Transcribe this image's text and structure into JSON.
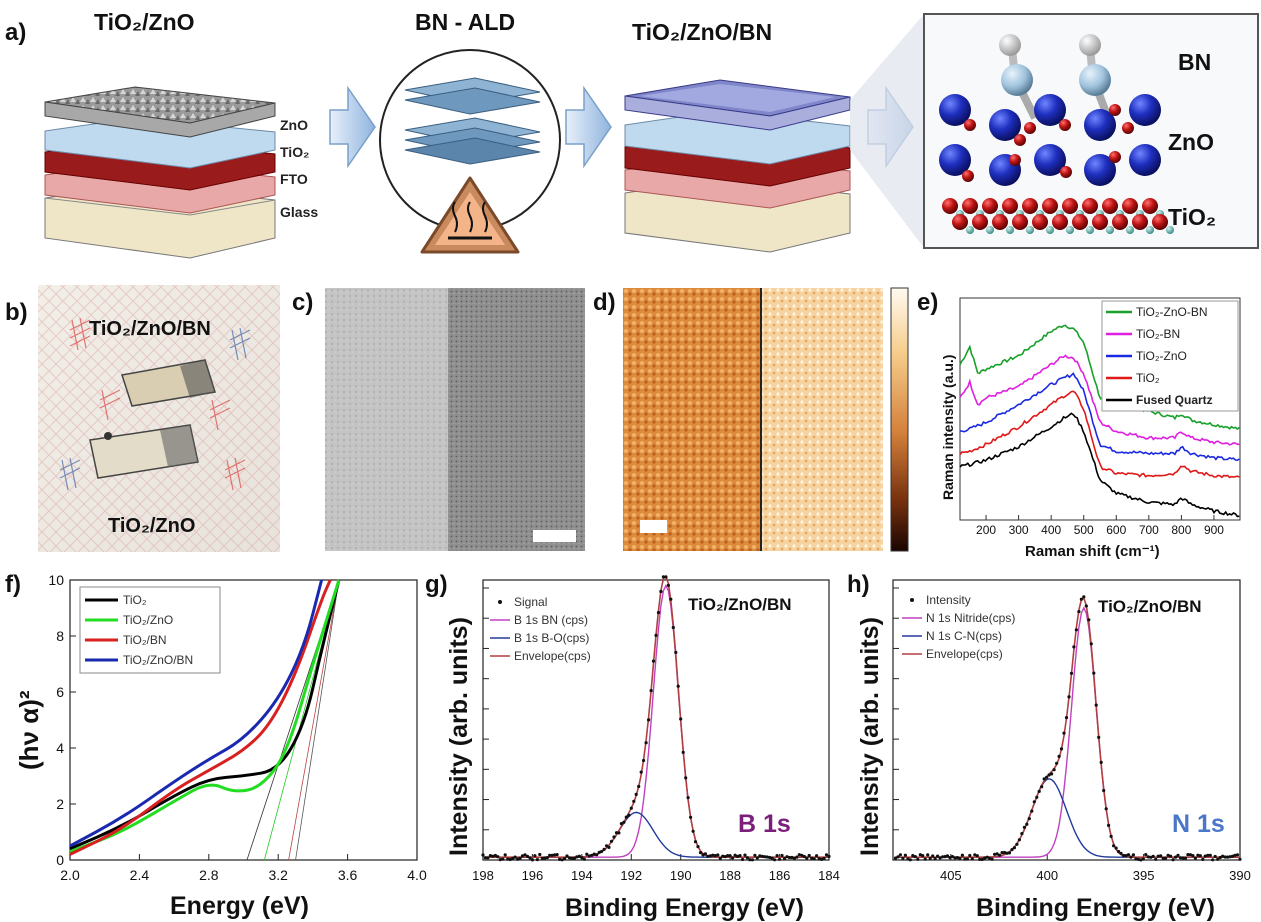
{
  "panel_a": {
    "label": "a)",
    "title_1": "TiO₂/ZnO",
    "title_2": "BN - ALD",
    "title_3": "TiO₂/ZnO/BN",
    "layers": [
      "ZnO",
      "TiO₂",
      "FTO",
      "Glass"
    ],
    "inset_labels": [
      "BN",
      "ZnO",
      "TiO₂"
    ],
    "icon": "hot-surface-warning-icon",
    "colors": {
      "zno": "#bfd9ee",
      "tio2": "#9a1b1b",
      "fto": "#e9a8a8",
      "glass": "#efe6c8",
      "atom_zn": "#1f2fbf",
      "atom_o": "#c01414",
      "atom_b": "#9ec2dc",
      "atom_h": "#f2f2f2"
    }
  },
  "panel_b": {
    "label": "b)",
    "top_text": "TiO₂/ZnO/BN",
    "bottom_text": "TiO₂/ZnO"
  },
  "panel_c": {
    "label": "c)"
  },
  "panel_d": {
    "label": "d)"
  },
  "panel_e": {
    "label": "e)",
    "legend": [
      "TiO₂-ZnO-BN",
      "TiO₂-BN",
      "TiO₂-ZnO",
      "TiO₂",
      "Fused Quartz"
    ],
    "colors": [
      "#18a02a",
      "#e020e0",
      "#1a2ae0",
      "#e01818",
      "#000000"
    ]
  },
  "panel_f": {
    "label": "f)",
    "ylabel": "(hν α)²",
    "xlabel": "Energy (eV)"
  },
  "panel_g": {
    "label": "g)",
    "sample": "TiO₂/ZnO/BN",
    "peak": "B 1s",
    "ylabel": "Intensity (arb. units)",
    "xlabel": "Binding Energy (eV)"
  },
  "panel_h": {
    "label": "h)",
    "sample": "TiO₂/ZnO/BN",
    "peak": "N 1s",
    "ylabel": "Intensity (arb. units)",
    "xlabel": "Binding Energy (eV)"
  },
  "chart_data": [
    {
      "type": "line",
      "panel": "e",
      "xlabel": "Raman shift (cm⁻¹)",
      "ylabel": "Raman intensity (a.u.)",
      "xticks": [
        200,
        300,
        400,
        500,
        600,
        700,
        800,
        900
      ],
      "xlim": [
        120,
        980
      ],
      "series": [
        {
          "name": "TiO₂-ZnO-BN",
          "x": [
            120,
            150,
            175,
            200,
            300,
            400,
            440,
            470,
            500,
            550,
            600,
            700,
            780,
            800,
            830,
            900,
            980
          ],
          "y": [
            0.7,
            0.78,
            0.66,
            0.68,
            0.74,
            0.85,
            0.88,
            0.86,
            0.8,
            0.55,
            0.53,
            0.49,
            0.46,
            0.48,
            0.45,
            0.43,
            0.41
          ]
        },
        {
          "name": "TiO₂-BN",
          "x": [
            120,
            150,
            175,
            200,
            300,
            400,
            440,
            470,
            500,
            550,
            600,
            700,
            780,
            800,
            830,
            900,
            980
          ],
          "y": [
            0.55,
            0.62,
            0.52,
            0.55,
            0.6,
            0.7,
            0.74,
            0.73,
            0.66,
            0.44,
            0.4,
            0.37,
            0.37,
            0.4,
            0.37,
            0.35,
            0.34
          ]
        },
        {
          "name": "TiO₂-ZnO",
          "x": [
            120,
            150,
            200,
            300,
            400,
            440,
            470,
            500,
            550,
            600,
            700,
            780,
            800,
            830,
            900,
            980
          ],
          "y": [
            0.4,
            0.41,
            0.44,
            0.52,
            0.61,
            0.64,
            0.66,
            0.58,
            0.34,
            0.31,
            0.3,
            0.3,
            0.33,
            0.3,
            0.28,
            0.27
          ]
        },
        {
          "name": "TiO₂",
          "x": [
            120,
            150,
            200,
            300,
            400,
            440,
            470,
            500,
            550,
            600,
            700,
            780,
            800,
            830,
            900,
            980
          ],
          "y": [
            0.3,
            0.31,
            0.34,
            0.42,
            0.52,
            0.56,
            0.58,
            0.5,
            0.24,
            0.21,
            0.2,
            0.21,
            0.25,
            0.22,
            0.2,
            0.19
          ]
        },
        {
          "name": "Fused Quartz",
          "x": [
            120,
            150,
            200,
            300,
            400,
            440,
            470,
            500,
            550,
            600,
            700,
            780,
            800,
            830,
            900,
            980
          ],
          "y": [
            0.24,
            0.25,
            0.27,
            0.33,
            0.42,
            0.46,
            0.48,
            0.4,
            0.18,
            0.12,
            0.08,
            0.07,
            0.1,
            0.07,
            0.04,
            0.02
          ]
        }
      ]
    },
    {
      "type": "line",
      "panel": "f",
      "xlabel": "Energy (eV)",
      "ylabel": "(hν α)²",
      "xlim": [
        2.0,
        4.0
      ],
      "ylim": [
        0,
        10
      ],
      "xticks": [
        2.0,
        2.4,
        2.8,
        3.2,
        3.6,
        4.0
      ],
      "yticks": [
        0,
        2,
        4,
        6,
        8,
        10
      ],
      "series": [
        {
          "name": "TiO₂",
          "color": "#000000",
          "x": [
            2.0,
            2.3,
            2.6,
            2.8,
            3.0,
            3.2,
            3.35,
            3.45,
            3.55
          ],
          "y": [
            0.4,
            1.2,
            2.3,
            2.9,
            3.0,
            3.2,
            4.8,
            7.5,
            10
          ]
        },
        {
          "name": "TiO₂/ZnO",
          "color": "#22dd22",
          "x": [
            2.0,
            2.3,
            2.6,
            2.8,
            2.95,
            3.1,
            3.25,
            3.4,
            3.5,
            3.55
          ],
          "y": [
            0.3,
            1.0,
            2.1,
            2.8,
            2.4,
            2.6,
            3.8,
            7.0,
            9.0,
            10
          ]
        },
        {
          "name": "TiO₂/BN",
          "color": "#d82020",
          "x": [
            2.0,
            2.3,
            2.6,
            2.8,
            3.0,
            3.15,
            3.3,
            3.45,
            3.5
          ],
          "y": [
            0.2,
            1.1,
            2.5,
            3.2,
            3.9,
            4.8,
            6.6,
            9.3,
            10
          ]
        },
        {
          "name": "TiO₂/ZnO/BN",
          "color": "#1a2ab0",
          "x": [
            2.0,
            2.3,
            2.6,
            2.8,
            3.0,
            3.2,
            3.35,
            3.45
          ],
          "y": [
            0.5,
            1.5,
            2.8,
            3.6,
            4.3,
            5.7,
            7.6,
            10
          ]
        }
      ]
    },
    {
      "type": "line",
      "panel": "g",
      "xlabel": "Binding Energy (eV)",
      "ylabel": "Intensity (arb. units)",
      "xlim": [
        198,
        184
      ],
      "xticks": [
        198,
        196,
        194,
        192,
        190,
        188,
        186,
        184
      ],
      "legend": [
        "Signal",
        "B 1s BN (cps)",
        "B 1s B-O(cps)",
        "Envelope(cps)"
      ],
      "peaks": [
        {
          "name": "B 1s BN (cps)",
          "center": 190.6,
          "fwhm": 1.2,
          "height": 0.97,
          "color": "#c040c0"
        },
        {
          "name": "B 1s B-O(cps)",
          "center": 191.8,
          "fwhm": 1.6,
          "height": 0.16,
          "color": "#203a9a"
        }
      ]
    },
    {
      "type": "line",
      "panel": "h",
      "xlabel": "Binding Energy (eV)",
      "ylabel": "Intensity (arb. units)",
      "xlim": [
        408,
        390
      ],
      "xticks": [
        405,
        400,
        395,
        390
      ],
      "legend": [
        "Intensity",
        "N 1s Nitride(cps)",
        "N 1s C-N(cps)",
        "Envelope(cps)"
      ],
      "peaks": [
        {
          "name": "N 1s Nitride(cps)",
          "center": 398.1,
          "fwhm": 1.5,
          "height": 0.89,
          "color": "#c040c0"
        },
        {
          "name": "N 1s C-N(cps)",
          "center": 399.9,
          "fwhm": 2.1,
          "height": 0.28,
          "color": "#203a9a"
        }
      ]
    }
  ]
}
